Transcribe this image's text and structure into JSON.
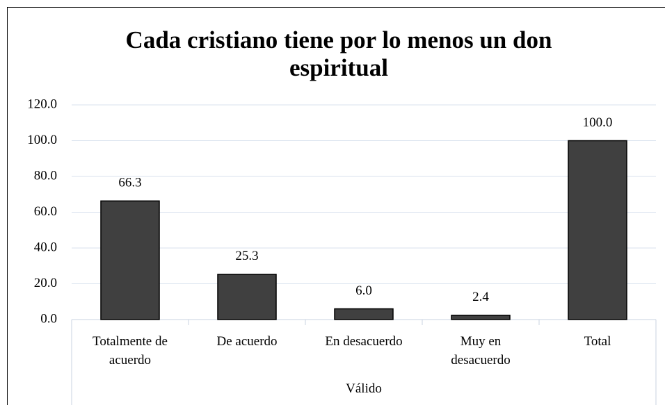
{
  "chart_data": {
    "type": "bar",
    "title": "Cada cristiano tiene por lo menos un don espiritual",
    "categories": [
      "Totalmente de acuerdo",
      "De acuerdo",
      "En desacuerdo",
      "Muy en desacuerdo",
      "Total"
    ],
    "x_group_label": "Válido",
    "values": [
      66.3,
      25.3,
      6.0,
      2.4,
      100.0
    ],
    "value_labels": [
      "66.3",
      "25.3",
      "6.0",
      "2.4",
      "100.0"
    ],
    "color": "#404040",
    "ylim": [
      0,
      120
    ],
    "yticks": [
      {
        "value": 0,
        "label": "0.0"
      },
      {
        "value": 20,
        "label": "20.0"
      },
      {
        "value": 40,
        "label": "40.0"
      },
      {
        "value": 60,
        "label": "60.0"
      },
      {
        "value": 80,
        "label": "80.0"
      },
      {
        "value": 100,
        "label": "100.0"
      },
      {
        "value": 120,
        "label": "120.0"
      }
    ],
    "grid": true
  }
}
